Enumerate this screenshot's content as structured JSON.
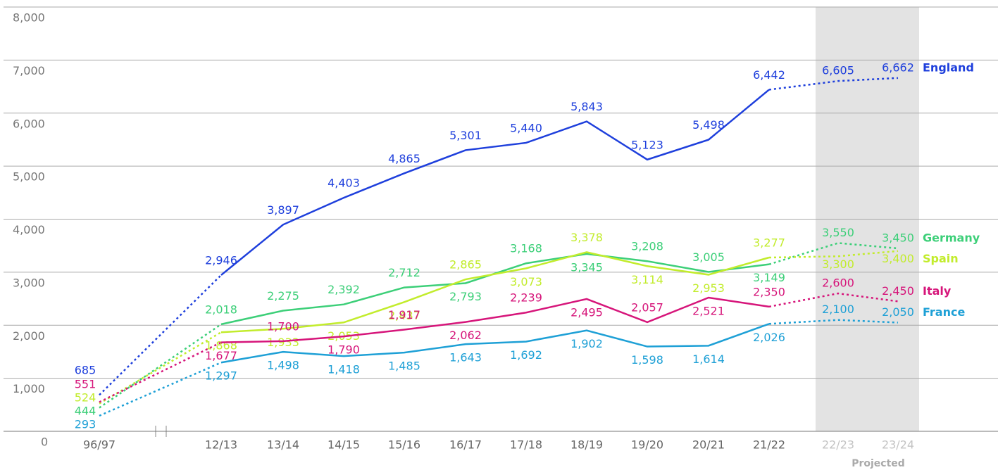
{
  "chart_data": {
    "type": "line",
    "categories": [
      "96/97",
      "12/13",
      "13/14",
      "14/15",
      "15/16",
      "16/17",
      "17/18",
      "18/19",
      "19/20",
      "20/21",
      "21/22",
      "22/23",
      "23/24"
    ],
    "annotation": "Projected",
    "ylim": [
      0,
      8000
    ],
    "yticks": [
      0,
      {
        "value": 1000,
        "label": "1,000"
      },
      {
        "value": 2000,
        "label": "2,000"
      },
      {
        "value": 3000,
        "label": "3,000"
      },
      {
        "value": 4000,
        "label": "4,000"
      },
      {
        "value": 5000,
        "label": "5,000"
      },
      {
        "value": 6000,
        "label": "6,000"
      },
      {
        "value": 7000,
        "label": "7,000"
      },
      {
        "value": 8000,
        "label": "8,000"
      }
    ],
    "grid": true,
    "series": [
      {
        "name": "England",
        "color": "#1e3fdc",
        "values": [
          685,
          2946,
          3897,
          4403,
          4865,
          5301,
          5440,
          5843,
          5123,
          5498,
          6442,
          6605,
          6662
        ],
        "value_labels": [
          "685",
          "2,946",
          "3,897",
          "4,403",
          "4,865",
          "5,301",
          "5,440",
          "5,843",
          "5,123",
          "5,498",
          "6,442",
          "6,605",
          "6,662"
        ]
      },
      {
        "name": "Germany",
        "color": "#3ccf78",
        "values": [
          444,
          2018,
          2275,
          2392,
          2712,
          2793,
          3168,
          3345,
          3208,
          3005,
          3149,
          3550,
          3450
        ],
        "value_labels": [
          "444",
          "2,018",
          "2,275",
          "2,392",
          "2,712",
          "2,793",
          "3,168",
          "3,345",
          "3,208",
          "3,005",
          "3,149",
          "3,550",
          "3,450"
        ]
      },
      {
        "name": "Spain",
        "color": "#c2ec2c",
        "values": [
          524,
          1868,
          1933,
          2053,
          2437,
          2865,
          3073,
          3378,
          3114,
          2953,
          3277,
          3300,
          3400
        ],
        "value_labels": [
          "524",
          "1,868",
          "1,933",
          "2,053",
          "2,437",
          "2,865",
          "3,073",
          "3,378",
          "3,114",
          "2,953",
          "3,277",
          "3,300",
          "3,400"
        ]
      },
      {
        "name": "Italy",
        "color": "#d6157a",
        "values": [
          551,
          1677,
          1700,
          1790,
          1917,
          2062,
          2239,
          2495,
          2057,
          2521,
          2350,
          2600,
          2450
        ],
        "value_labels": [
          "551",
          "1,677",
          "1,700",
          "1,790",
          "1,917",
          "2,062",
          "2,239",
          "2,495",
          "2,057",
          "2,521",
          "2,350",
          "2,600",
          "2,450"
        ]
      },
      {
        "name": "France",
        "color": "#1ea0d6",
        "values": [
          293,
          1297,
          1498,
          1418,
          1485,
          1643,
          1692,
          1902,
          1598,
          1614,
          2026,
          2100,
          2050
        ],
        "value_labels": [
          "293",
          "1,297",
          "1,498",
          "1,418",
          "1,485",
          "1,643",
          "1,692",
          "1,902",
          "1,598",
          "1,614",
          "2,026",
          "2,100",
          "2,050"
        ]
      }
    ]
  }
}
